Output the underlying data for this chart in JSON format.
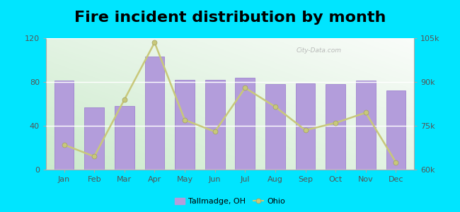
{
  "title": "Fire incident distribution by month",
  "months": [
    "Jan",
    "Feb",
    "Mar",
    "Apr",
    "May",
    "Jun",
    "Jul",
    "Aug",
    "Sep",
    "Oct",
    "Nov",
    "Dec"
  ],
  "tallmadge_values": [
    81,
    57,
    58,
    103,
    82,
    82,
    84,
    78,
    79,
    78,
    81,
    72
  ],
  "ohio_values": [
    68500,
    64500,
    84000,
    103500,
    77000,
    73000,
    88000,
    81500,
    73500,
    76000,
    79500,
    62500
  ],
  "bar_color": "#b39ddb",
  "bar_edge_color": "#9575cd",
  "line_color": "#c8c87a",
  "line_marker": "o",
  "background_color_bottom": "#c8e6c9",
  "background_color_top": "#f0fff0",
  "outer_background": "#00e5ff",
  "ylim_left": [
    0,
    120
  ],
  "ylim_right": [
    60000,
    105000
  ],
  "yticks_left": [
    0,
    40,
    80,
    120
  ],
  "yticks_right": [
    60000,
    75000,
    90000,
    105000
  ],
  "ytick_right_labels": [
    "60k",
    "75k",
    "90k",
    "105k"
  ],
  "title_fontsize": 16,
  "legend_tallmadge": "Tallmadge, OH",
  "legend_ohio": "Ohio",
  "watermark": "City-Data.com"
}
